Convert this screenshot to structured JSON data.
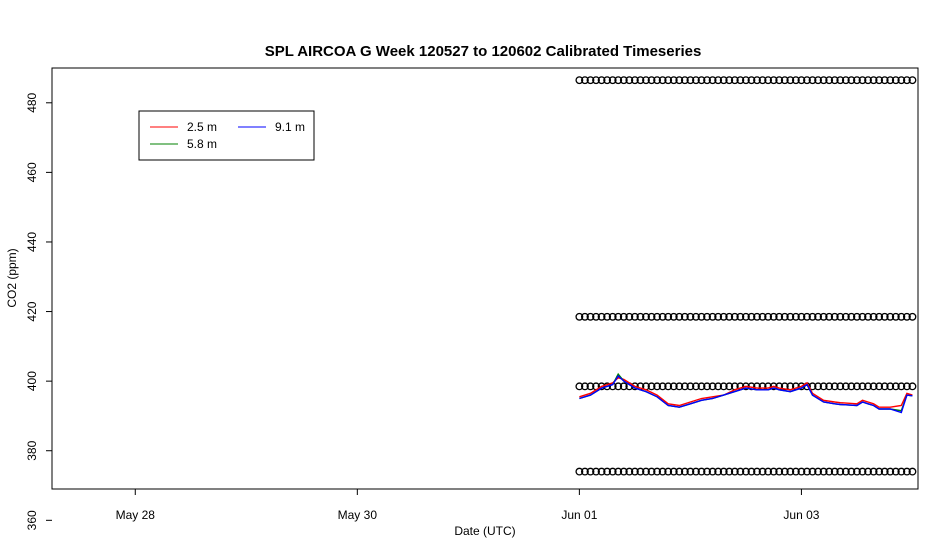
{
  "chart_data": {
    "type": "line",
    "title": "SPL AIRCOA G  Week 120527 to 120602  Calibrated Timeseries",
    "xlabel": "Date (UTC)",
    "ylabel": "CO2 (ppm)",
    "xlim": [
      -0.75,
      7.05
    ],
    "ylim": [
      369,
      490
    ],
    "x_tick_labels": [
      "May 28",
      "May 30",
      "Jun 01",
      "Jun 03"
    ],
    "x_tick_values": [
      0,
      2,
      4,
      6
    ],
    "y_ticks": [
      360,
      380,
      400,
      420,
      440,
      460,
      480
    ],
    "legend": {
      "position": "top-left",
      "entries": [
        "2.5 m",
        "5.8 m",
        "9.1 m"
      ]
    },
    "series": [
      {
        "name": "2.5 m",
        "color": "#ff0000",
        "x": [
          4.0,
          4.1,
          4.2,
          4.3,
          4.35,
          4.4,
          4.5,
          4.6,
          4.7,
          4.8,
          4.9,
          5.0,
          5.1,
          5.2,
          5.3,
          5.4,
          5.5,
          5.6,
          5.7,
          5.75,
          5.8,
          5.9,
          6.0,
          6.05,
          6.1,
          6.2,
          6.3,
          6.35,
          6.4,
          6.5,
          6.55,
          6.6,
          6.65,
          6.7,
          6.8,
          6.9,
          6.95,
          7.0
        ],
        "values": [
          395.5,
          396.5,
          398.5,
          399.5,
          401.0,
          400.5,
          398.5,
          397.5,
          396.0,
          393.5,
          393.0,
          394.0,
          395.0,
          395.5,
          396.0,
          397.5,
          398.5,
          398.0,
          398.0,
          398.5,
          398.0,
          397.5,
          398.5,
          399.5,
          396.5,
          394.5,
          394.0,
          393.8,
          393.7,
          393.5,
          394.5,
          394.0,
          393.5,
          392.5,
          392.5,
          393.0,
          396.5,
          396.0
        ]
      },
      {
        "name": "5.8 m",
        "color": "#008000",
        "x": [
          4.0,
          4.1,
          4.2,
          4.3,
          4.35,
          4.4,
          4.5,
          4.6,
          4.7,
          4.8,
          4.9,
          5.0,
          5.1,
          5.2,
          5.3,
          5.4,
          5.5,
          5.6,
          5.7,
          5.75,
          5.8,
          5.9,
          6.0,
          6.05,
          6.1,
          6.2,
          6.3,
          6.35,
          6.4,
          6.5,
          6.55,
          6.6,
          6.65,
          6.7,
          6.8,
          6.9,
          6.95,
          7.0
        ],
        "values": [
          395.0,
          396.0,
          398.0,
          399.0,
          402.0,
          400.0,
          398.0,
          397.0,
          395.5,
          393.0,
          392.5,
          393.5,
          394.5,
          395.0,
          396.0,
          397.0,
          398.0,
          397.5,
          397.5,
          398.0,
          397.5,
          397.0,
          398.0,
          399.0,
          396.0,
          394.0,
          393.5,
          393.3,
          393.2,
          393.0,
          394.0,
          393.5,
          393.0,
          392.0,
          392.0,
          391.5,
          396.0,
          395.8
        ]
      },
      {
        "name": "9.1 m",
        "color": "#0000ff",
        "x": [
          4.0,
          4.1,
          4.2,
          4.3,
          4.35,
          4.4,
          4.5,
          4.6,
          4.7,
          4.8,
          4.9,
          5.0,
          5.1,
          5.2,
          5.3,
          5.4,
          5.5,
          5.6,
          5.7,
          5.75,
          5.8,
          5.9,
          6.0,
          6.05,
          6.1,
          6.2,
          6.3,
          6.35,
          6.4,
          6.5,
          6.55,
          6.6,
          6.65,
          6.7,
          6.8,
          6.9,
          6.95,
          7.0
        ],
        "values": [
          395.0,
          396.0,
          398.0,
          399.0,
          401.5,
          400.0,
          398.0,
          397.0,
          395.5,
          393.0,
          392.5,
          393.5,
          394.5,
          395.0,
          396.0,
          397.0,
          398.0,
          397.5,
          397.5,
          398.0,
          397.5,
          397.0,
          398.0,
          399.0,
          396.0,
          394.0,
          393.5,
          393.3,
          393.2,
          393.0,
          394.0,
          393.5,
          393.0,
          392.0,
          392.0,
          391.0,
          396.0,
          395.8
        ]
      }
    ],
    "reference_points": {
      "marker": "open-circle",
      "levels": [
        374,
        398.5,
        418.5,
        486.5
      ],
      "x": [
        4.0,
        4.05,
        4.1,
        4.15,
        4.2,
        4.25,
        4.3,
        4.35,
        4.4,
        4.45,
        4.5,
        4.55,
        4.6,
        4.65,
        4.7,
        4.75,
        4.8,
        4.85,
        4.9,
        4.95,
        5.0,
        5.05,
        5.1,
        5.15,
        5.2,
        5.25,
        5.3,
        5.35,
        5.4,
        5.45,
        5.5,
        5.55,
        5.6,
        5.65,
        5.7,
        5.75,
        5.8,
        5.85,
        5.9,
        5.95,
        6.0,
        6.05,
        6.1,
        6.15,
        6.2,
        6.25,
        6.3,
        6.35,
        6.4,
        6.45,
        6.5,
        6.55,
        6.6,
        6.65,
        6.7,
        6.75,
        6.8,
        6.85,
        6.9,
        6.95,
        7.0
      ]
    }
  }
}
